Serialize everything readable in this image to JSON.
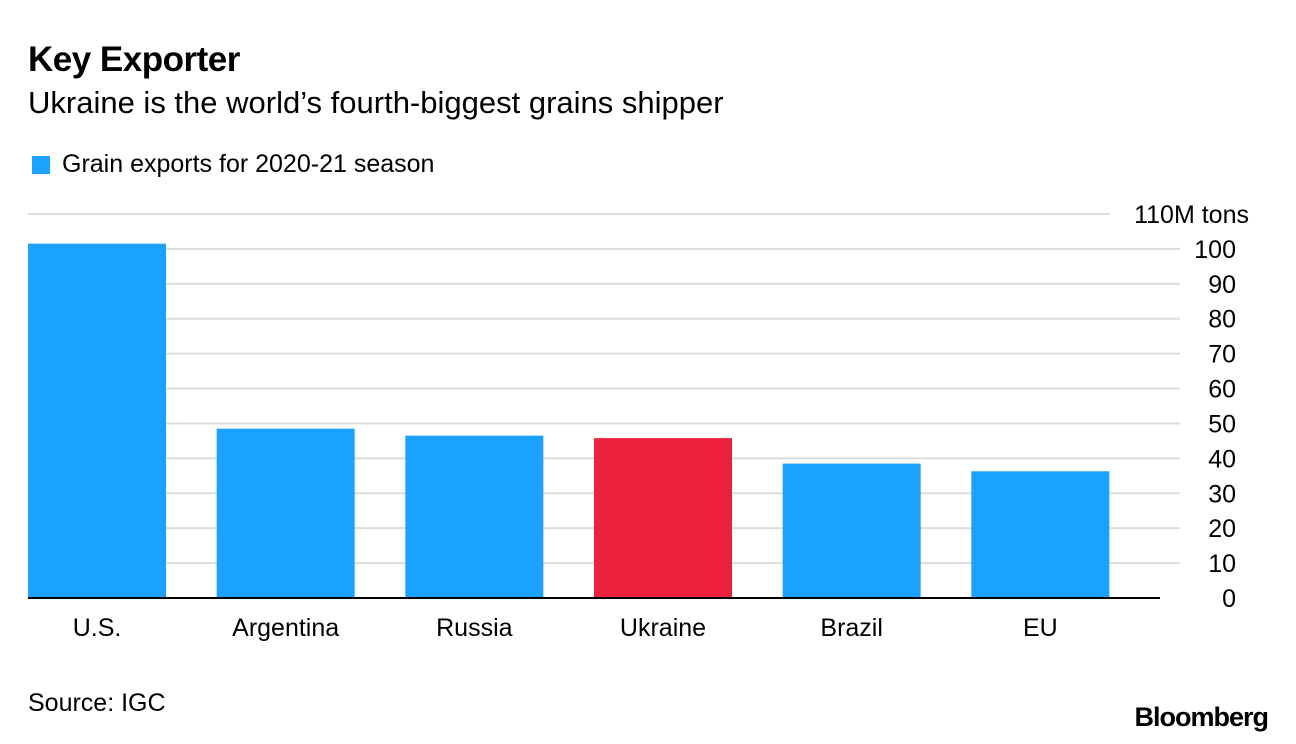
{
  "header": {
    "title": "Key Exporter",
    "subtitle": "Ukraine is the world’s fourth-biggest grains shipper"
  },
  "legend": {
    "label": "Grain exports for 2020-21 season"
  },
  "footer": {
    "source": "Source: IGC",
    "brand": "Bloomberg"
  },
  "colors": {
    "bar": "#1ba1ff",
    "highlight": "#ec213e",
    "grid": "#dcdcdc",
    "axis": "#000000"
  },
  "chart_data": {
    "type": "bar",
    "title": "Key Exporter",
    "subtitle": "Ukraine is the world’s fourth-biggest grains shipper",
    "categories": [
      "U.S.",
      "Argentina",
      "Russia",
      "Ukraine",
      "Brazil",
      "EU"
    ],
    "series": [
      {
        "name": "Grain exports for 2020-21 season",
        "values": [
          101.5,
          48.5,
          46.5,
          45.8,
          38.5,
          36.3
        ]
      }
    ],
    "highlight_category": "Ukraine",
    "ylim": [
      0,
      110
    ],
    "yticks": [
      0,
      10,
      20,
      30,
      40,
      50,
      60,
      70,
      80,
      90,
      100,
      110
    ],
    "ytick_labels": [
      "0",
      "10",
      "20",
      "30",
      "40",
      "50",
      "60",
      "70",
      "80",
      "90",
      "100",
      "110M tons"
    ],
    "xlabel": "",
    "ylabel": "",
    "grid": true,
    "legend_position": "top-left"
  }
}
